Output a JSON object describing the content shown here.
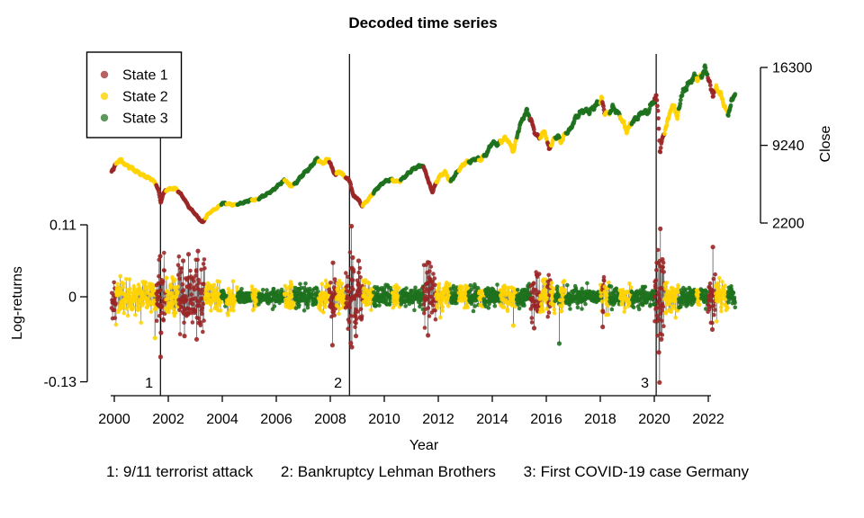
{
  "title": "Decoded time series",
  "chart_data": {
    "type": "scatter",
    "title": "Decoded time series",
    "xlabel": "Year",
    "x_range": [
      1999.9,
      2023.0
    ],
    "x_ticks": [
      2000,
      2002,
      2004,
      2006,
      2008,
      2010,
      2012,
      2014,
      2016,
      2018,
      2020,
      2022
    ],
    "right_axis": {
      "label": "Close",
      "ticks": [
        2200,
        9240,
        16300
      ],
      "range": [
        2200,
        16300
      ]
    },
    "left_axis": {
      "label": "Log-returns",
      "ticks": [
        -0.13,
        0,
        0.11
      ],
      "tick_labels": [
        "-0.13",
        "0",
        "0.11"
      ],
      "range": [
        -0.13,
        0.11
      ]
    },
    "legend": {
      "position": "top-left",
      "entries": [
        {
          "label": "State 1",
          "state": 1,
          "color": "#9B2626"
        },
        {
          "label": "State 2",
          "state": 2,
          "color": "#FFD302"
        },
        {
          "label": "State 3",
          "state": 3,
          "color": "#1E721E"
        }
      ]
    },
    "colors": {
      "state1": "#9B2626",
      "state2": "#FFD302",
      "state3": "#1E721E",
      "needle": "#000000",
      "axis": "#000000",
      "event_line": "#000000"
    },
    "events": [
      {
        "num": "1",
        "year": 2001.71,
        "label": "9/11 terrorist attack"
      },
      {
        "num": "2",
        "year": 2008.71,
        "label": "Bankruptcy Lehman Brothers"
      },
      {
        "num": "3",
        "year": 2020.07,
        "label": "First COVID-19 case Germany"
      }
    ],
    "series": {
      "close_anchors": [
        [
          1999.9,
          6900
        ],
        [
          2000.05,
          7500
        ],
        [
          2000.2,
          7950
        ],
        [
          2000.45,
          7400
        ],
        [
          2000.6,
          7250
        ],
        [
          2000.8,
          6900
        ],
        [
          2001.0,
          6600
        ],
        [
          2001.25,
          6300
        ],
        [
          2001.4,
          6150
        ],
        [
          2001.55,
          5700
        ],
        [
          2001.63,
          5200
        ],
        [
          2001.72,
          4000
        ],
        [
          2001.8,
          4800
        ],
        [
          2001.95,
          5250
        ],
        [
          2002.1,
          5300
        ],
        [
          2002.25,
          5350
        ],
        [
          2002.4,
          5000
        ],
        [
          2002.6,
          4350
        ],
        [
          2002.75,
          3700
        ],
        [
          2002.95,
          3150
        ],
        [
          2003.1,
          2700
        ],
        [
          2003.22,
          2350
        ],
        [
          2003.28,
          2250
        ],
        [
          2003.45,
          2950
        ],
        [
          2003.6,
          3250
        ],
        [
          2003.8,
          3550
        ],
        [
          2004.0,
          4000
        ],
        [
          2004.2,
          3950
        ],
        [
          2004.4,
          3850
        ],
        [
          2004.6,
          3900
        ],
        [
          2004.8,
          4050
        ],
        [
          2005.0,
          4250
        ],
        [
          2005.3,
          4350
        ],
        [
          2005.6,
          4750
        ],
        [
          2005.9,
          5200
        ],
        [
          2006.0,
          5450
        ],
        [
          2006.2,
          5900
        ],
        [
          2006.35,
          6100
        ],
        [
          2006.5,
          5550
        ],
        [
          2006.7,
          5750
        ],
        [
          2007.0,
          6650
        ],
        [
          2007.25,
          7200
        ],
        [
          2007.5,
          8050
        ],
        [
          2007.7,
          7600
        ],
        [
          2007.95,
          8000
        ],
        [
          2008.1,
          6900
        ],
        [
          2008.2,
          6600
        ],
        [
          2008.35,
          6900
        ],
        [
          2008.5,
          6450
        ],
        [
          2008.65,
          6200
        ],
        [
          2008.75,
          5800
        ],
        [
          2008.85,
          4650
        ],
        [
          2009.0,
          4450
        ],
        [
          2009.18,
          3750
        ],
        [
          2009.4,
          4300
        ],
        [
          2009.6,
          4950
        ],
        [
          2009.8,
          5500
        ],
        [
          2010.0,
          5950
        ],
        [
          2010.25,
          6150
        ],
        [
          2010.45,
          5950
        ],
        [
          2010.6,
          6050
        ],
        [
          2010.8,
          6500
        ],
        [
          2011.0,
          6950
        ],
        [
          2011.2,
          7250
        ],
        [
          2011.4,
          7450
        ],
        [
          2011.55,
          6700
        ],
        [
          2011.65,
          5850
        ],
        [
          2011.78,
          5000
        ],
        [
          2011.9,
          5750
        ],
        [
          2012.05,
          6450
        ],
        [
          2012.25,
          6800
        ],
        [
          2012.45,
          5950
        ],
        [
          2012.6,
          6450
        ],
        [
          2012.8,
          7150
        ],
        [
          2013.0,
          7650
        ],
        [
          2013.2,
          7800
        ],
        [
          2013.4,
          8050
        ],
        [
          2013.55,
          7900
        ],
        [
          2013.8,
          8550
        ],
        [
          2014.0,
          9500
        ],
        [
          2014.2,
          9300
        ],
        [
          2014.45,
          9900
        ],
        [
          2014.6,
          9650
        ],
        [
          2014.78,
          8650
        ],
        [
          2015.0,
          10900
        ],
        [
          2015.15,
          11800
        ],
        [
          2015.28,
          12350
        ],
        [
          2015.45,
          11400
        ],
        [
          2015.6,
          10250
        ],
        [
          2015.75,
          9950
        ],
        [
          2015.95,
          10500
        ],
        [
          2016.1,
          8850
        ],
        [
          2016.3,
          9900
        ],
        [
          2016.45,
          10150
        ],
        [
          2016.52,
          9450
        ],
        [
          2016.7,
          10250
        ],
        [
          2016.9,
          10700
        ],
        [
          2017.1,
          11800
        ],
        [
          2017.35,
          12400
        ],
        [
          2017.6,
          12300
        ],
        [
          2017.85,
          12900
        ],
        [
          2018.05,
          13400
        ],
        [
          2018.15,
          12300
        ],
        [
          2018.3,
          12050
        ],
        [
          2018.45,
          12650
        ],
        [
          2018.6,
          12350
        ],
        [
          2018.8,
          11600
        ],
        [
          2018.98,
          10500
        ],
        [
          2019.15,
          11300
        ],
        [
          2019.35,
          11700
        ],
        [
          2019.55,
          12250
        ],
        [
          2019.75,
          12200
        ],
        [
          2019.95,
          13200
        ],
        [
          2020.07,
          13650
        ],
        [
          2020.14,
          12300
        ],
        [
          2020.21,
          8450
        ],
        [
          2020.3,
          9900
        ],
        [
          2020.45,
          11000
        ],
        [
          2020.6,
          12500
        ],
        [
          2020.75,
          12850
        ],
        [
          2020.85,
          11600
        ],
        [
          2021.0,
          13750
        ],
        [
          2021.2,
          14600
        ],
        [
          2021.4,
          15250
        ],
        [
          2021.55,
          15550
        ],
        [
          2021.65,
          15100
        ],
        [
          2021.8,
          15850
        ],
        [
          2021.88,
          16250
        ],
        [
          2022.0,
          15450
        ],
        [
          2022.1,
          14250
        ],
        [
          2022.18,
          13900
        ],
        [
          2022.3,
          14450
        ],
        [
          2022.45,
          13900
        ],
        [
          2022.6,
          12800
        ],
        [
          2022.73,
          12050
        ],
        [
          2022.85,
          13100
        ],
        [
          2023.0,
          14050
        ]
      ],
      "state_segments": [
        [
          1999.9,
          2000.06,
          1,
          0.018
        ],
        [
          2000.06,
          2001.55,
          2,
          0.013
        ],
        [
          2001.55,
          2001.9,
          1,
          0.028
        ],
        [
          2001.9,
          2002.36,
          2,
          0.015
        ],
        [
          2002.36,
          2003.36,
          1,
          0.026
        ],
        [
          2003.36,
          2003.96,
          2,
          0.012
        ],
        [
          2003.96,
          2004.16,
          3,
          0.007
        ],
        [
          2004.16,
          2004.56,
          2,
          0.009
        ],
        [
          2004.56,
          2005.1,
          3,
          0.006
        ],
        [
          2005.1,
          2005.34,
          2,
          0.008
        ],
        [
          2005.34,
          2006.3,
          3,
          0.006
        ],
        [
          2006.3,
          2006.66,
          2,
          0.011
        ],
        [
          2006.66,
          2007.56,
          3,
          0.007
        ],
        [
          2007.56,
          2007.96,
          2,
          0.011
        ],
        [
          2007.96,
          2008.22,
          1,
          0.02
        ],
        [
          2008.22,
          2008.56,
          2,
          0.013
        ],
        [
          2008.56,
          2009.2,
          1,
          0.028
        ],
        [
          2009.2,
          2009.6,
          2,
          0.013
        ],
        [
          2009.6,
          2010.3,
          3,
          0.008
        ],
        [
          2010.3,
          2010.6,
          2,
          0.009
        ],
        [
          2010.6,
          2011.44,
          3,
          0.007
        ],
        [
          2011.44,
          2011.92,
          1,
          0.022
        ],
        [
          2011.92,
          2012.46,
          2,
          0.012
        ],
        [
          2012.46,
          2012.76,
          3,
          0.007
        ],
        [
          2012.76,
          2013.12,
          2,
          0.009
        ],
        [
          2013.12,
          2013.5,
          3,
          0.007
        ],
        [
          2013.5,
          2013.68,
          2,
          0.008
        ],
        [
          2013.68,
          2014.3,
          3,
          0.007
        ],
        [
          2014.3,
          2014.9,
          2,
          0.01
        ],
        [
          2014.9,
          2015.4,
          3,
          0.008
        ],
        [
          2015.4,
          2015.76,
          1,
          0.018
        ],
        [
          2015.76,
          2016.04,
          2,
          0.013
        ],
        [
          2016.04,
          2016.16,
          1,
          0.017
        ],
        [
          2016.16,
          2016.32,
          2,
          0.012
        ],
        [
          2016.32,
          2016.5,
          3,
          0.007
        ],
        [
          2016.5,
          2016.72,
          2,
          0.012
        ],
        [
          2016.72,
          2018.0,
          3,
          0.006
        ],
        [
          2018.0,
          2018.08,
          2,
          0.011
        ],
        [
          2018.08,
          2018.16,
          1,
          0.015
        ],
        [
          2018.16,
          2018.34,
          2,
          0.011
        ],
        [
          2018.34,
          2018.72,
          3,
          0.007
        ],
        [
          2018.72,
          2019.16,
          2,
          0.01
        ],
        [
          2019.16,
          2020.0,
          3,
          0.007
        ],
        [
          2020.0,
          2020.38,
          1,
          0.032
        ],
        [
          2020.38,
          2020.9,
          2,
          0.013
        ],
        [
          2020.9,
          2021.56,
          3,
          0.007
        ],
        [
          2021.56,
          2021.72,
          2,
          0.008
        ],
        [
          2021.72,
          2021.98,
          3,
          0.007
        ],
        [
          2021.98,
          2022.26,
          1,
          0.018
        ],
        [
          2022.26,
          2022.72,
          2,
          0.012
        ],
        [
          2022.72,
          2023.0,
          3,
          0.008
        ]
      ],
      "return_extremes": [
        [
          2001.505,
          -0.063
        ],
        [
          2001.7,
          0.062
        ],
        [
          2001.715,
          -0.092
        ],
        [
          2001.73,
          -0.055
        ],
        [
          2002.55,
          0.055
        ],
        [
          2002.6,
          -0.06
        ],
        [
          2002.75,
          0.065
        ],
        [
          2003.05,
          -0.065
        ],
        [
          2003.1,
          0.07
        ],
        [
          2008.08,
          -0.074
        ],
        [
          2008.1,
          0.052
        ],
        [
          2008.76,
          -0.071
        ],
        [
          2008.785,
          0.108
        ],
        [
          2008.8,
          -0.077
        ],
        [
          2008.83,
          0.06
        ],
        [
          2008.95,
          -0.06
        ],
        [
          2009.05,
          0.055
        ],
        [
          2011.62,
          -0.059
        ],
        [
          2011.66,
          0.052
        ],
        [
          2014.78,
          -0.044
        ],
        [
          2015.55,
          -0.048
        ],
        [
          2016.48,
          -0.0715
        ],
        [
          2018.09,
          -0.046
        ],
        [
          2020.17,
          -0.085
        ],
        [
          2020.195,
          -0.131
        ],
        [
          2020.225,
          0.104
        ],
        [
          2020.26,
          -0.065
        ],
        [
          2020.3,
          0.057
        ],
        [
          2022.15,
          -0.05
        ],
        [
          2022.17,
          0.076
        ]
      ],
      "sampling": {
        "close_step": 0.018,
        "returns_step": 0.009,
        "seed": 42
      }
    }
  }
}
